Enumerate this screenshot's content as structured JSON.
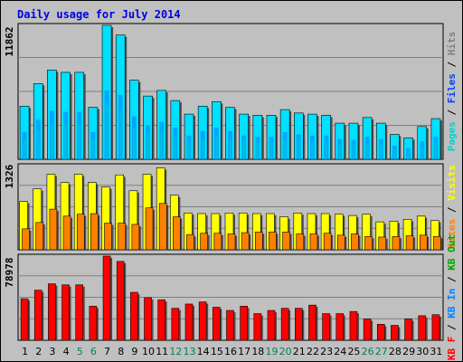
{
  "title": "Daily usage for July 2014",
  "colors": {
    "title": "#0000e0",
    "hits": "#00e0ff",
    "files": "#0040ff",
    "pages": "#00d0d0",
    "visits": "#ffff00",
    "sites": "#ff8000",
    "kbytes": "#ff0000",
    "kb_in": "#0080ff",
    "kb_out": "#00a000",
    "panel": "#c0c0c0",
    "grid": "#808080",
    "weekend_day": "#008060",
    "day": "#000000"
  },
  "chart_data": [
    {
      "type": "bar",
      "name": "top",
      "max_label": "11862",
      "legend": [
        "Hits",
        "Files",
        "Pages"
      ],
      "ymax": 11862,
      "x": [
        1,
        2,
        3,
        4,
        5,
        6,
        7,
        8,
        9,
        10,
        11,
        12,
        13,
        14,
        15,
        16,
        17,
        18,
        19,
        20,
        21,
        22,
        23,
        24,
        25,
        26,
        27,
        28,
        29,
        30,
        31
      ],
      "series": [
        {
          "name": "Hits",
          "values": [
            4700,
            6700,
            7900,
            7700,
            7700,
            4600,
            11862,
            11000,
            7000,
            5600,
            6100,
            5200,
            4000,
            4700,
            5100,
            4600,
            4000,
            3900,
            3900,
            4400,
            4100,
            4000,
            3900,
            3200,
            3200,
            3700,
            3200,
            2200,
            1900,
            2900,
            3600
          ]
        },
        {
          "name": "Files",
          "values": [
            2400,
            3500,
            4300,
            4200,
            4200,
            2400,
            6100,
            5700,
            3800,
            3000,
            3300,
            2800,
            2100,
            2500,
            2800,
            2500,
            2100,
            2000,
            2000,
            2400,
            2200,
            2100,
            2100,
            1800,
            1700,
            2000,
            1800,
            1200,
            1000,
            1600,
            2000
          ]
        },
        {
          "name": "Pages",
          "values": [
            1800,
            2600,
            3200,
            3100,
            3100,
            1800,
            4700,
            4400,
            2800,
            2200,
            2400,
            2000,
            1600,
            1800,
            2000,
            1800,
            1600,
            1500,
            1500,
            1700,
            1600,
            1600,
            1500,
            1300,
            1300,
            1400,
            1300,
            900,
            800,
            1100,
            1400
          ]
        }
      ]
    },
    {
      "type": "bar",
      "name": "middle",
      "max_label": "1326",
      "legend": [
        "Visits",
        "Sites"
      ],
      "ymax": 1326,
      "x": [
        1,
        2,
        3,
        4,
        5,
        6,
        7,
        8,
        9,
        10,
        11,
        12,
        13,
        14,
        15,
        16,
        17,
        18,
        19,
        20,
        21,
        22,
        23,
        24,
        25,
        26,
        27,
        28,
        29,
        30,
        31
      ],
      "series": [
        {
          "name": "Visits",
          "values": [
            760,
            960,
            1190,
            1060,
            1190,
            1060,
            990,
            1180,
            930,
            1190,
            1290,
            860,
            580,
            570,
            570,
            580,
            580,
            570,
            570,
            520,
            580,
            570,
            570,
            560,
            540,
            560,
            440,
            450,
            480,
            530,
            460
          ]
        },
        {
          "name": "Sites",
          "values": [
            330,
            430,
            640,
            530,
            560,
            570,
            420,
            420,
            400,
            660,
            730,
            520,
            240,
            260,
            260,
            250,
            270,
            280,
            280,
            280,
            250,
            250,
            260,
            230,
            250,
            210,
            200,
            210,
            220,
            230,
            210
          ]
        }
      ]
    },
    {
      "type": "bar",
      "name": "bottom",
      "max_label": "78978",
      "legend": [
        "KB F",
        "KB In",
        "KB Out"
      ],
      "ymax": 78978,
      "x": [
        1,
        2,
        3,
        4,
        5,
        6,
        7,
        8,
        9,
        10,
        11,
        12,
        13,
        14,
        15,
        16,
        17,
        18,
        19,
        20,
        21,
        22,
        23,
        24,
        25,
        26,
        27,
        28,
        29,
        30,
        31
      ],
      "series": [
        {
          "name": "KB F",
          "values": [
            39000,
            47000,
            53000,
            52000,
            52000,
            32000,
            78978,
            74000,
            45000,
            40000,
            38000,
            30000,
            34000,
            36000,
            31000,
            28000,
            32000,
            25000,
            28000,
            30000,
            30000,
            33000,
            25000,
            25000,
            27000,
            20000,
            15000,
            14000,
            20000,
            23000,
            24000
          ]
        }
      ]
    }
  ],
  "right_legends": {
    "top": [
      {
        "text": "Pages",
        "color_key": "pages"
      },
      {
        "text": " / ",
        "color_key": "day"
      },
      {
        "text": "Files",
        "color_key": "files"
      },
      {
        "text": " / ",
        "color_key": "day"
      },
      {
        "text": "Hits",
        "color_key": "grid"
      }
    ],
    "middle": [
      {
        "text": "Sites",
        "color_key": "sites"
      },
      {
        "text": " / ",
        "color_key": "day"
      },
      {
        "text": "Visits",
        "color_key": "visits"
      }
    ],
    "bottom": [
      {
        "text": "KB F",
        "color_key": "kbytes"
      },
      {
        "text": " / ",
        "color_key": "day"
      },
      {
        "text": "KB In",
        "color_key": "kb_in"
      },
      {
        "text": " / ",
        "color_key": "day"
      },
      {
        "text": "KB Out",
        "color_key": "kb_out"
      }
    ]
  },
  "weekend_days": [
    5,
    6,
    12,
    13,
    19,
    20,
    26,
    27
  ]
}
